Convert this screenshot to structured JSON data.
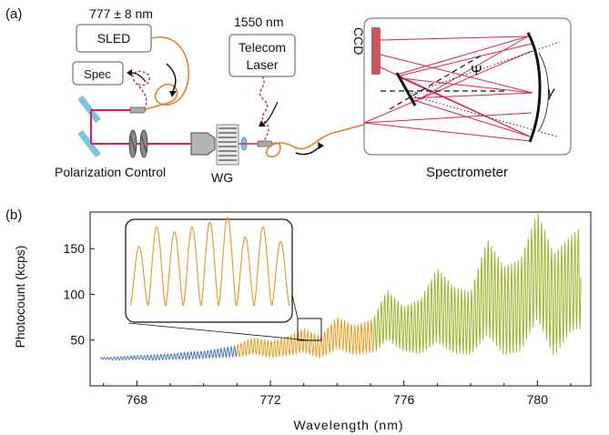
{
  "panel_a": {
    "label": "(a)",
    "sled_wavelength": "777 ± 8 nm",
    "sled_label": "SLED",
    "spec_label": "Spec",
    "laser_wavelength": "1550 nm",
    "laser_label_line1": "Telecom",
    "laser_label_line2": "Laser",
    "polarization_label": "Polarization Control",
    "wg_label": "WG",
    "ccd_label": "CCD",
    "psi_label": "Ψ",
    "gamma_label": "γ",
    "spectrometer_label": "Spectrometer",
    "colors": {
      "beam": "#e0204a",
      "fiber": "#e07b20",
      "mirror": "#7ac5e6",
      "ccd": "#c9585c"
    }
  },
  "panel_b": {
    "label": "(b)"
  },
  "chart_data": {
    "type": "line",
    "xlabel": "Wavelength (nm)",
    "ylabel": "Photocount (kcps)",
    "xlim": [
      766.6,
      781.6
    ],
    "ylim": [
      0,
      190
    ],
    "xticks": [
      768,
      772,
      776,
      780
    ],
    "yticks": [
      50,
      100,
      150
    ],
    "fringe_period_nm": 0.1,
    "series": [
      {
        "color": "#4a78b4",
        "x_range": [
          766.9,
          771.0
        ],
        "envelope": {
          "x": [
            766.9,
            767.5,
            768.0,
            768.5,
            769.0,
            769.5,
            770.0,
            770.5,
            771.0
          ],
          "mean": [
            30,
            30,
            31,
            31,
            32,
            33,
            34,
            36,
            38
          ],
          "amp": [
            1,
            2,
            2,
            3,
            3,
            4,
            4,
            5,
            6
          ]
        }
      },
      {
        "color": "#e3a02a",
        "x_range": [
          771.0,
          775.1
        ],
        "envelope": {
          "x": [
            771.0,
            771.5,
            772.0,
            772.5,
            773.0,
            773.5,
            774.0,
            774.5,
            775.1
          ],
          "mean": [
            38,
            44,
            40,
            43,
            50,
            42,
            58,
            50,
            55
          ],
          "amp": [
            7,
            9,
            9,
            10,
            13,
            12,
            17,
            16,
            18
          ]
        }
      },
      {
        "color": "#9bb52c",
        "x_range": [
          775.1,
          781.3
        ],
        "envelope": {
          "x": [
            775.1,
            775.5,
            776.0,
            776.5,
            777.0,
            777.5,
            778.0,
            778.5,
            779.0,
            779.5,
            780.0,
            780.5,
            781.0,
            781.3
          ],
          "mean": [
            55,
            78,
            62,
            65,
            88,
            72,
            68,
            108,
            82,
            88,
            132,
            88,
            112,
            118
          ],
          "amp": [
            20,
            27,
            24,
            30,
            40,
            36,
            34,
            52,
            48,
            50,
            58,
            56,
            52,
            55
          ]
        }
      }
    ],
    "inset": {
      "color": "#e3a02a",
      "x_range": [
        772.5,
        773.3
      ],
      "y_range": [
        45,
        65
      ],
      "peaks": [
        60,
        64,
        63,
        64,
        65,
        66,
        62,
        64,
        61
      ]
    }
  }
}
